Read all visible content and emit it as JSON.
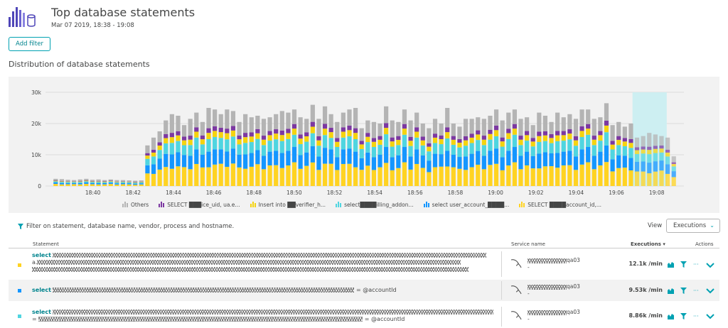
{
  "header": {
    "title": "Top database statements",
    "subtitle": "Mar 07 2019, 18:38 - 19:08"
  },
  "toolbar": {
    "add_filter_label": "Add filter"
  },
  "section_title": "Distribution of database statements",
  "colors": {
    "others": "#b4b4b4",
    "purple": "#7c38a1",
    "yellow": "#f5d30f",
    "cyan": "#4fd5e0",
    "blue": "#1496ff",
    "gold": "#ffd322",
    "accent": "#00a1b2",
    "selection": "#cdeff2"
  },
  "chart_data": {
    "type": "bar",
    "stacked": true,
    "y_ticks": [
      "30k",
      "20k",
      "10k",
      "0"
    ],
    "ylim": [
      0,
      30000
    ],
    "x_ticks": [
      "18:40",
      "18:42",
      "18:44",
      "18:46",
      "18:48",
      "18:50",
      "18:52",
      "18:54",
      "18:56",
      "18:58",
      "19:00",
      "19:02",
      "19:04",
      "19:06",
      "19:08"
    ],
    "x_range": [
      "18:38",
      "19:08"
    ],
    "legend_position": "bottom",
    "selected_range": [
      "19:06.8",
      "19:08"
    ],
    "series": [
      {
        "name": "Others",
        "color_key": "others"
      },
      {
        "name": "SELECT ███ice_uid, ua.e...",
        "color_key": "purple"
      },
      {
        "name": "Insert into ██verifier_h...",
        "color_key": "yellow"
      },
      {
        "name": "select████illing_addon...",
        "color_key": "cyan"
      },
      {
        "name": "select user_account_████...",
        "color_key": "blue"
      },
      {
        "name": "SELECT ████account_id,...",
        "color_key": "gold"
      }
    ],
    "bar_totals": [
      2300,
      2200,
      2000,
      1900,
      2100,
      2300,
      2000,
      2100,
      1900,
      2100,
      1900,
      1900,
      1800,
      1700,
      1800,
      13000,
      15500,
      17500,
      21000,
      23000,
      22500,
      19500,
      21500,
      23500,
      20500,
      25000,
      24500,
      23000,
      24500,
      24000,
      20500,
      23000,
      22000,
      22500,
      21500,
      22000,
      23000,
      24000,
      23500,
      24500,
      22000,
      21500,
      26000,
      21500,
      25500,
      23000,
      20500,
      23500,
      24500,
      25000,
      18500,
      21000,
      20500,
      20000,
      25500,
      21000,
      20500,
      24500,
      21000,
      23500,
      20000,
      18500,
      21500,
      20000,
      25000,
      20000,
      19000,
      21500,
      21500,
      22000,
      21500,
      22500,
      24500,
      21000,
      23500,
      24500,
      21500,
      22000,
      19500,
      23500,
      22500,
      20500,
      23500,
      22000,
      23000,
      21500,
      24500,
      24500,
      21500,
      22000,
      26500,
      19500,
      20500,
      19000,
      20000,
      15500,
      16000,
      17000,
      16500,
      16000,
      15500,
      9500
    ]
  },
  "legend": [
    {
      "label": "Others"
    },
    {
      "label": "SELECT ███ice_uid, ua.e..."
    },
    {
      "label": "Insert into ██verifier_h..."
    },
    {
      "label": "select████illing_addon..."
    },
    {
      "label": "select user_account_████..."
    },
    {
      "label": "SELECT ████account_id,..."
    }
  ],
  "filter": {
    "placeholder": "Filter on statement, database name, vendor, process and hostname."
  },
  "view": {
    "label": "View",
    "selected": "Executions"
  },
  "table": {
    "headers": {
      "statement": "Statement",
      "service": "Service name",
      "executions": "Executions ▾",
      "actions": "Actions"
    },
    "rows": [
      {
        "keyword": "select",
        "line2_prefix": "a.",
        "service_name": "qa03",
        "service_sub": "-",
        "executions": "12.1k /min",
        "more": "···",
        "color_key": "gold"
      },
      {
        "keyword": "select",
        "line1_suffix": "= @accountId",
        "service_name": "qa03",
        "service_sub": "-",
        "executions": "9.53k /min",
        "more": "···",
        "color_key": "blue"
      },
      {
        "keyword": "select",
        "line2_prefix": "=",
        "line2_suffix": "= @accountId",
        "service_name": "qa03",
        "service_sub": "-",
        "executions": "8.86k /min",
        "more": "···",
        "color_key": "cyan"
      }
    ]
  }
}
